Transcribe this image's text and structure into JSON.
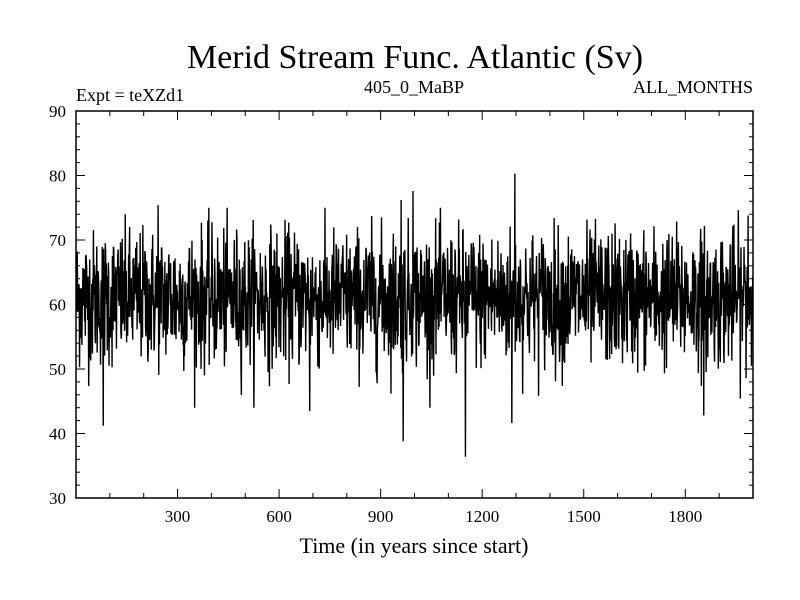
{
  "chart_data": {
    "type": "line",
    "title": "Merid Stream Func. Atlantic (Sv)",
    "subtitle_left": "Expt = teXZd1",
    "subtitle_center": "405_0_MaBP",
    "subtitle_right": "ALL_MONTHS",
    "xlabel": "Time (in years since start)",
    "ylabel": "",
    "xlim": [
      0,
      2000
    ],
    "ylim": [
      30,
      90
    ],
    "xticks": [
      300,
      600,
      900,
      1200,
      1500,
      1800
    ],
    "yticks": [
      30,
      40,
      50,
      60,
      70,
      80,
      90
    ],
    "n_points": 2000,
    "series_mean": 61,
    "series_std": 5.2,
    "notable_points": [
      {
        "x": 80,
        "y": 41.2
      },
      {
        "x": 690,
        "y": 43.5
      },
      {
        "x": 966,
        "y": 38.8
      },
      {
        "x": 1150,
        "y": 36.4
      },
      {
        "x": 1287,
        "y": 41.6
      },
      {
        "x": 1854,
        "y": 42.8
      },
      {
        "x": 960,
        "y": 76.2
      },
      {
        "x": 995,
        "y": 77.6
      },
      {
        "x": 1296,
        "y": 80.3
      },
      {
        "x": 242,
        "y": 75.4
      },
      {
        "x": 1985,
        "y": 73.8
      }
    ],
    "grid": false,
    "line_color": "#000000"
  }
}
